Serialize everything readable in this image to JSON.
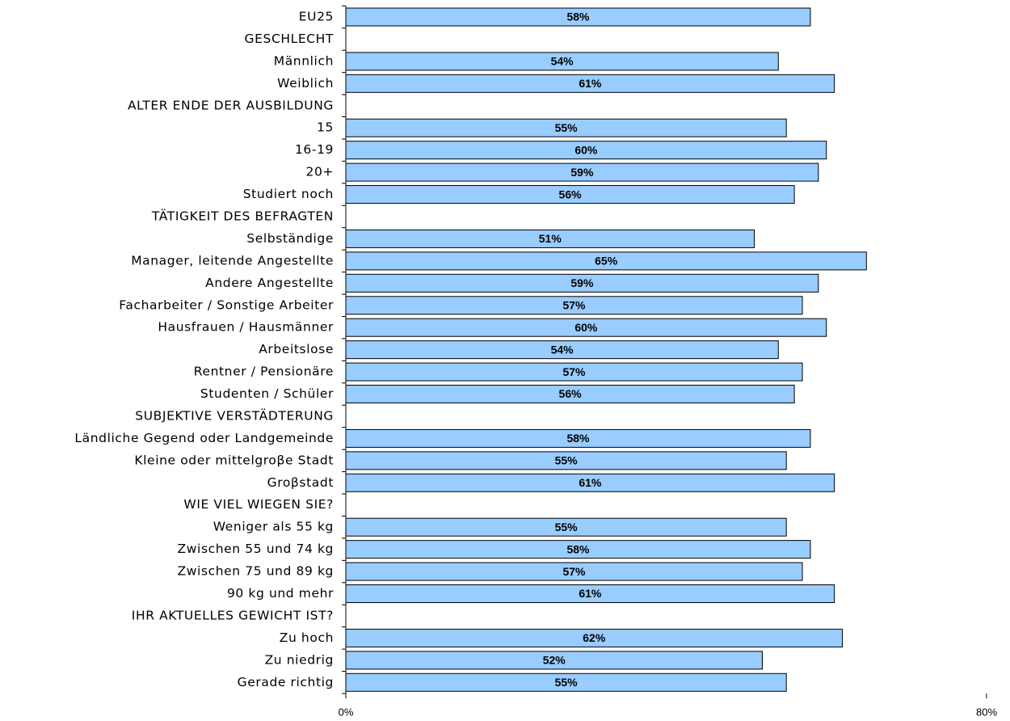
{
  "chart_data": {
    "type": "bar",
    "orientation": "horizontal",
    "categories": [
      "EU25",
      "GESCHLECHT",
      "Männlich",
      "Weiblich",
      "ALTER ENDE DER AUSBILDUNG",
      "15",
      "16-19",
      "20+",
      "Studiert noch",
      "TÄTIGKEIT DES BEFRAGTEN",
      "Selbständige",
      "Manager, leitende Angestellte",
      "Andere Angestellte",
      "Facharbeiter / Sonstige Arbeiter",
      "Hausfrauen / Hausmänner",
      "Arbeitslose",
      "Rentner / Pensionäre",
      "Studenten / Schüler",
      "SUBJEKTIVE VERSTÄDTERUNG",
      "Ländliche Gegend oder Landgemeinde",
      "Kleine oder mittelgroβe Stadt",
      "Groβstadt",
      "WIE VIEL WIEGEN SIE?",
      "Weniger als 55 kg",
      "Zwischen 55 und 74 kg",
      "Zwischen 75 und 89 kg",
      "90 kg und mehr",
      "IHR AKTUELLES GEWICHT IST?",
      "Zu hoch",
      "Zu niedrig",
      "Gerade richtig"
    ],
    "values": [
      58,
      null,
      54,
      61,
      null,
      55,
      60,
      59,
      56,
      null,
      51,
      65,
      59,
      57,
      60,
      54,
      57,
      56,
      null,
      58,
      55,
      61,
      null,
      55,
      58,
      57,
      61,
      null,
      62,
      52,
      55
    ],
    "value_labels": [
      "58%",
      null,
      "54%",
      "61%",
      null,
      "55%",
      "60%",
      "59%",
      "56%",
      null,
      "51%",
      "65%",
      "59%",
      "57%",
      "60%",
      "54%",
      "57%",
      "56%",
      null,
      "58%",
      "55%",
      "61%",
      null,
      "55%",
      "58%",
      "57%",
      "61%",
      null,
      "62%",
      "52%",
      "55%"
    ],
    "color": "#99ccff",
    "xlim": [
      0,
      80
    ],
    "xticks": [
      {
        "value": 0,
        "label": "0%"
      },
      {
        "value": 80,
        "label": "80%"
      }
    ]
  }
}
